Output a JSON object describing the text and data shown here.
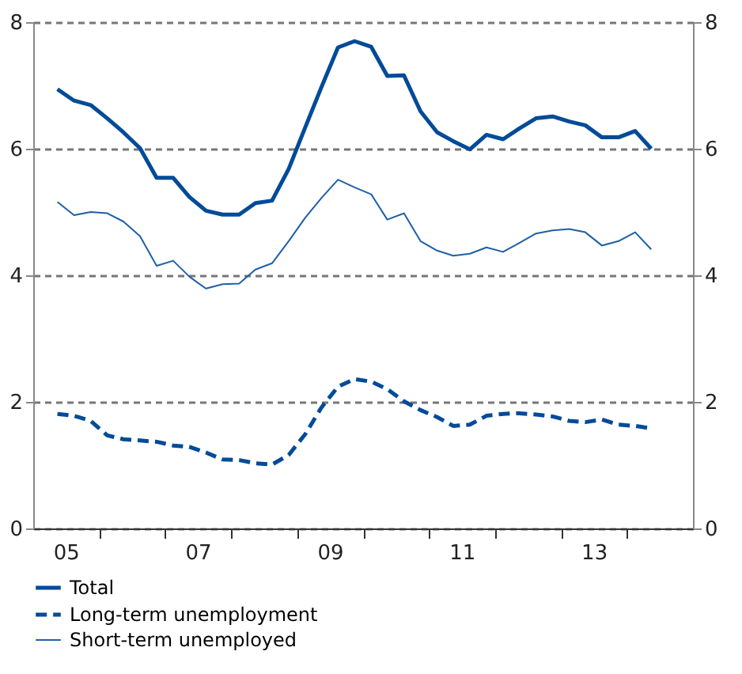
{
  "chart_data": {
    "type": "line",
    "x": [
      "2005-05-15",
      "2005-08-15",
      "2005-11-15",
      "2006-02-15",
      "2006-05-15",
      "2006-08-15",
      "2006-11-15",
      "2007-02-15",
      "2007-05-15",
      "2007-08-15",
      "2007-11-15",
      "2008-02-15",
      "2008-05-15",
      "2008-08-15",
      "2008-11-15",
      "2009-02-15",
      "2009-05-15",
      "2009-08-15",
      "2009-11-15",
      "2010-02-15",
      "2010-05-15",
      "2010-08-15",
      "2010-11-15",
      "2011-02-15",
      "2011-05-15",
      "2011-08-15",
      "2011-11-15",
      "2012-02-15",
      "2012-05-15",
      "2012-08-15",
      "2012-11-15",
      "2013-02-15",
      "2013-05-15",
      "2013-08-15",
      "2013-11-15",
      "2014-02-15",
      "2014-05-15"
    ],
    "series": [
      {
        "name": "Total",
        "color": "#004b98",
        "line_style": "solid",
        "values": [
          6.94,
          6.76,
          6.69,
          6.48,
          6.26,
          6.01,
          5.54,
          5.54,
          5.24,
          5.02,
          4.96,
          4.96,
          5.14,
          5.18,
          5.68,
          6.34,
          6.97,
          7.6,
          7.7,
          7.61,
          7.15,
          7.16,
          6.59,
          6.26,
          6.12,
          5.99,
          6.22,
          6.15,
          6.32,
          6.48,
          6.51,
          6.43,
          6.37,
          6.18,
          6.18,
          6.28,
          6.0
        ]
      },
      {
        "name": "Long-term unemployment",
        "color": "#004b98",
        "line_style": "dashed",
        "values": [
          1.81,
          1.78,
          1.7,
          1.47,
          1.41,
          1.39,
          1.37,
          1.31,
          1.29,
          1.2,
          1.09,
          1.08,
          1.03,
          1.01,
          1.16,
          1.49,
          1.91,
          2.24,
          2.36,
          2.32,
          2.2,
          2.01,
          1.87,
          1.76,
          1.62,
          1.64,
          1.78,
          1.81,
          1.82,
          1.8,
          1.77,
          1.7,
          1.68,
          1.72,
          1.64,
          1.62,
          1.58
        ]
      },
      {
        "name": "Short-term unemployed",
        "color": "#1f5fa8",
        "line_style": "solid",
        "values": [
          5.16,
          4.95,
          5.0,
          4.98,
          4.85,
          4.62,
          4.15,
          4.23,
          3.98,
          3.79,
          3.86,
          3.87,
          4.09,
          4.19,
          4.54,
          4.91,
          5.22,
          5.51,
          5.39,
          5.28,
          4.88,
          4.98,
          4.54,
          4.39,
          4.31,
          4.34,
          4.44,
          4.37,
          4.51,
          4.66,
          4.71,
          4.73,
          4.68,
          4.47,
          4.54,
          4.68,
          4.41
        ]
      }
    ],
    "xlim": [
      "2005-01-01",
      "2015-01-01"
    ],
    "xticks": [
      {
        "value": "2005-07-01",
        "label": "05"
      },
      {
        "value": "2006-01-01",
        "label": null
      },
      {
        "value": "2007-01-01",
        "label": null
      },
      {
        "value": "2007-07-01",
        "label": "07"
      },
      {
        "value": "2008-01-01",
        "label": null
      },
      {
        "value": "2009-01-01",
        "label": null
      },
      {
        "value": "2009-07-01",
        "label": "09"
      },
      {
        "value": "2010-01-01",
        "label": null
      },
      {
        "value": "2011-01-01",
        "label": null
      },
      {
        "value": "2011-07-01",
        "label": "11"
      },
      {
        "value": "2012-01-01",
        "label": null
      },
      {
        "value": "2013-01-01",
        "label": null
      },
      {
        "value": "2013-07-01",
        "label": "13"
      },
      {
        "value": "2014-01-01",
        "label": null
      }
    ],
    "ylim": [
      0,
      8
    ],
    "yticks": [
      0,
      2,
      4,
      6,
      8
    ],
    "y2lim": [
      0,
      8
    ],
    "y2ticks": [
      0,
      2,
      4,
      6,
      8
    ],
    "grid": "y",
    "legend": "bottom",
    "marker": "none"
  }
}
